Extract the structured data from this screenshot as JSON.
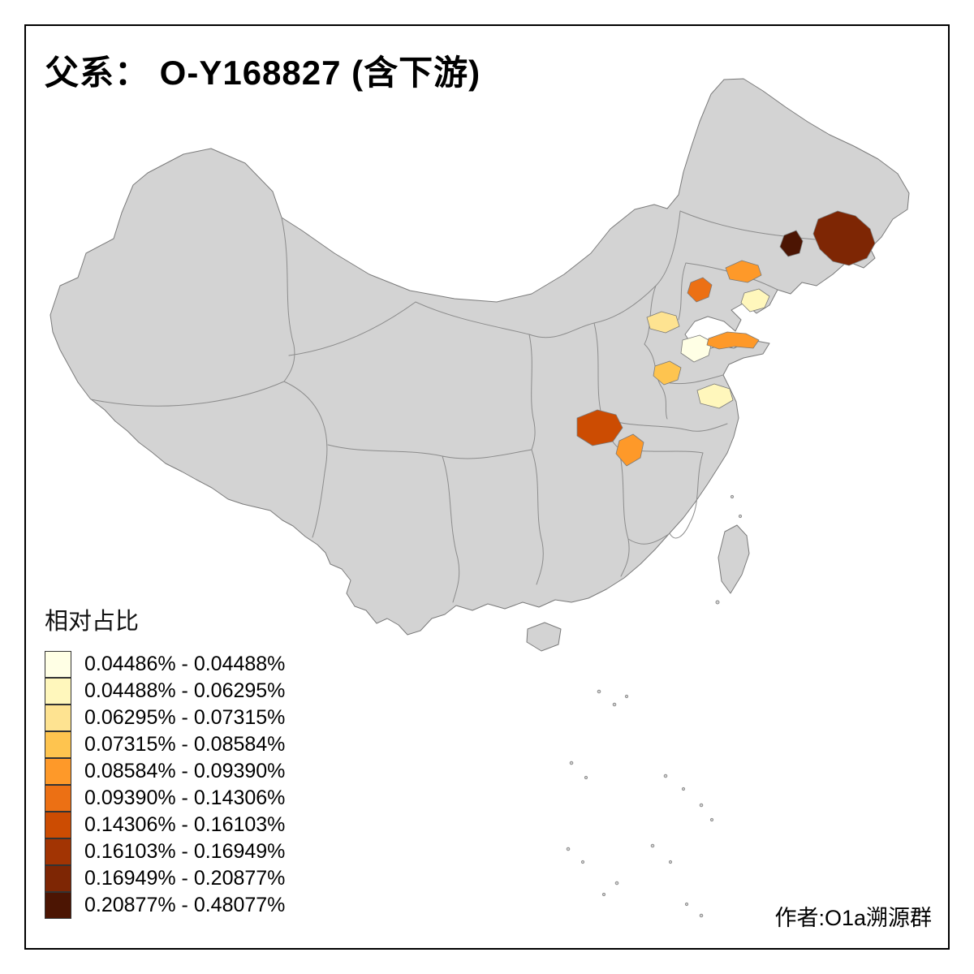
{
  "title": "父系： O-Y168827 (含下游)",
  "attribution": "作者:O1a溯源群",
  "legend": {
    "title": "相对占比",
    "entries": [
      {
        "label": "0.04486% - 0.04488%",
        "color": "#FFFFE5"
      },
      {
        "label": "0.04488% - 0.06295%",
        "color": "#FFF7BC"
      },
      {
        "label": "0.06295% - 0.07315%",
        "color": "#FEE391"
      },
      {
        "label": "0.07315% - 0.08584%",
        "color": "#FEC44F"
      },
      {
        "label": "0.08584% - 0.09390%",
        "color": "#FE9929"
      },
      {
        "label": "0.09390% - 0.14306%",
        "color": "#EC7014"
      },
      {
        "label": "0.14306% - 0.16103%",
        "color": "#CC4C02"
      },
      {
        "label": "0.16103% - 0.16949%",
        "color": "#A23403"
      },
      {
        "label": "0.16949% - 0.20877%",
        "color": "#7E2604"
      },
      {
        "label": "0.20877% - 0.48077%",
        "color": "#4C1503"
      }
    ]
  },
  "map": {
    "base_fill": "#D3D3D3",
    "boundary_color": "#7A7A7A",
    "background": "#FFFFFF",
    "regions": [
      {
        "id": "northeast-small-darkest",
        "color": "#4C1503"
      },
      {
        "id": "northeast-large-dark",
        "color": "#7E2604"
      },
      {
        "id": "liaoning-west",
        "color": "#EC7014"
      },
      {
        "id": "liaoning-north",
        "color": "#FE9929"
      },
      {
        "id": "liaodong-peninsula",
        "color": "#FFF7BC"
      },
      {
        "id": "hebei-light",
        "color": "#FEE391"
      },
      {
        "id": "shandong-northwest",
        "color": "#FFFFE5"
      },
      {
        "id": "shandong-peninsula",
        "color": "#FE9929"
      },
      {
        "id": "henan-east",
        "color": "#FEC44F"
      },
      {
        "id": "jiangsu-north",
        "color": "#FFF7BC"
      },
      {
        "id": "shaanxi-south",
        "color": "#CC4C02"
      },
      {
        "id": "hubei-west",
        "color": "#FE9929"
      }
    ]
  }
}
